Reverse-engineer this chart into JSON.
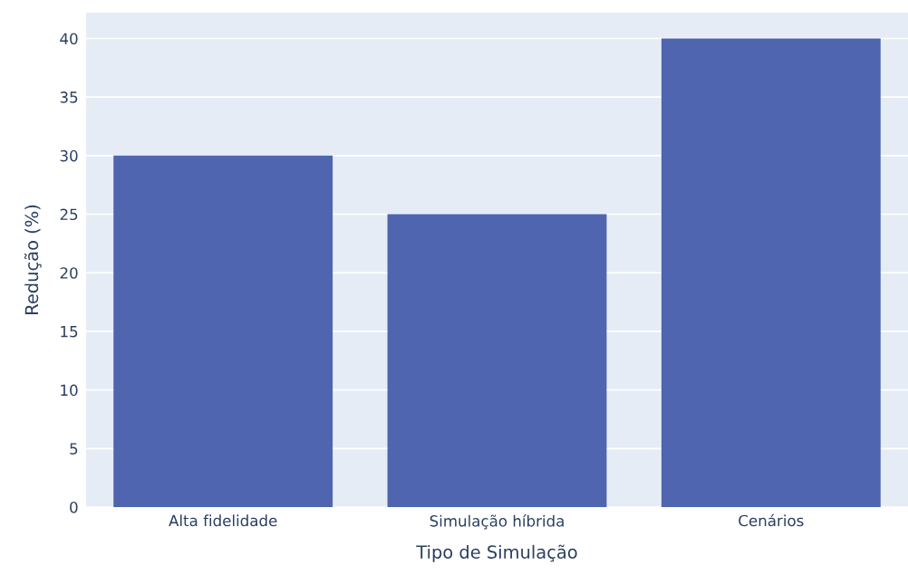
{
  "chart_data": {
    "type": "bar",
    "xlabel": "Tipo de Simulação",
    "ylabel": "Redução (%)",
    "categories": [
      "Alta fidelidade",
      "Simulação híbrida",
      "Cenários"
    ],
    "values": [
      30,
      25,
      40
    ],
    "color": "#4f65af",
    "ylim": [
      0,
      42.2
    ],
    "yticks": [
      0,
      5,
      10,
      15,
      20,
      25,
      30,
      35,
      40
    ],
    "grid": "y"
  }
}
